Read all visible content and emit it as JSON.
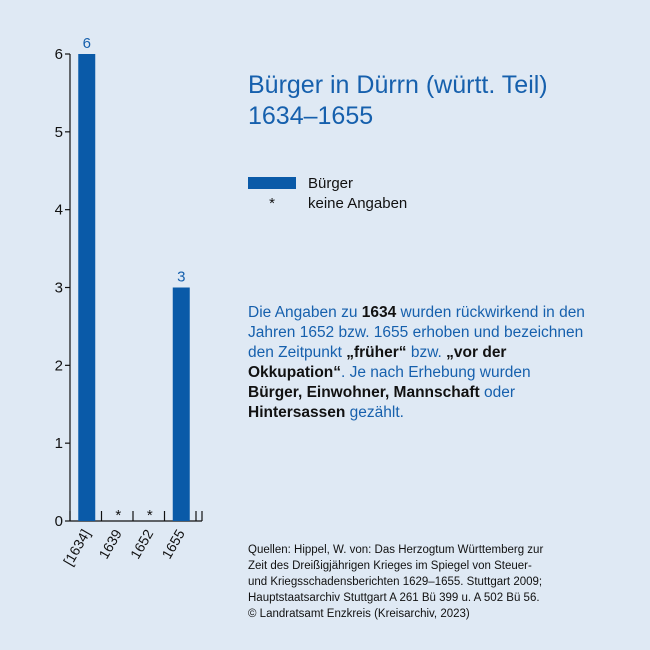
{
  "chart_data": {
    "type": "bar",
    "categories": [
      "[1634]",
      "1639",
      "1652",
      "1655"
    ],
    "series": [
      {
        "name": "Bürger",
        "values": [
          6,
          null,
          null,
          3
        ]
      }
    ],
    "data_labels": [
      "6",
      "*",
      "*",
      "3"
    ],
    "ylim": [
      0,
      6
    ],
    "yticks": [
      "0",
      "1",
      "2",
      "3",
      "4",
      "5",
      "6"
    ],
    "title": "Bürger in Dürrn (württ. Teil)",
    "subtitle": "1634–1655",
    "legend": [
      {
        "symbol": "bar",
        "label": "Bürger"
      },
      {
        "symbol": "*",
        "label": "keine Angaben"
      }
    ],
    "legend_position": "right",
    "grid": false
  },
  "colors": {
    "bar": "#0a5aa8",
    "accent": "#1660ad",
    "background": "#dfe9f4"
  },
  "note": {
    "p1": "Die Angaben zu ",
    "b1": "1634",
    "p2": " wurden rückwirkend in den Jahren 1652 bzw. 1655 erhoben und bezeichnen den Zeitpunkt ",
    "b2": "„früher“",
    "p3": " bzw. ",
    "b3": "„vor der Okkupation“",
    "p4": ". Je nach Erhebung wurden ",
    "b4": "Bürger, Einwohner, Mannschaft",
    "p5": " oder ",
    "b5": "Hintersassen",
    "p6": " gezählt."
  },
  "sources": [
    "Quellen: Hippel, W. von: Das Herzogtum Württemberg zur",
    "Zeit des Dreißigjährigen Krieges im Spiegel von Steuer-",
    "und Kriegsschadensberichten 1629–1655. Stuttgart 2009;",
    "Hauptstaatsarchiv Stuttgart A 261 Bü 399 u. A 502 Bü 56.",
    "© Landratsamt Enzkreis (Kreisarchiv, 2023)"
  ]
}
